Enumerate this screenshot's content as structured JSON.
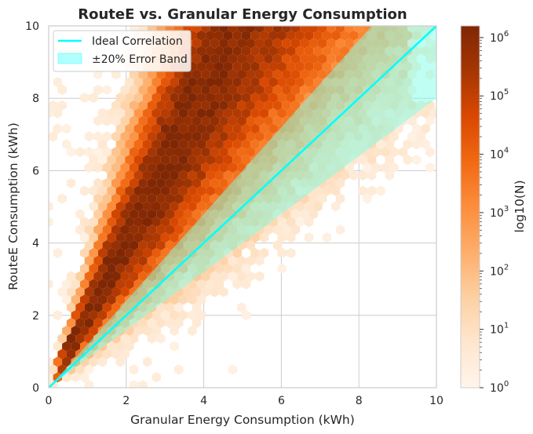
{
  "chart_data": {
    "type": "hexbin",
    "title": "RouteE vs. Granular Energy Consumption",
    "xlabel": "Granular Energy Consumption (kWh)",
    "ylabel": "RouteE Consumption (kWh)",
    "xlim": [
      0,
      10
    ],
    "ylim": [
      0,
      10
    ],
    "x_ticks": [
      "0",
      "2",
      "4",
      "6",
      "8",
      "10"
    ],
    "y_ticks": [
      "0",
      "2",
      "4",
      "6",
      "8",
      "10"
    ],
    "grid": true,
    "legend_position": "upper-left",
    "legend": [
      {
        "label": "Ideal Correlation",
        "kind": "line",
        "color": "#00ffff"
      },
      {
        "label": "±20% Error Band",
        "kind": "patch",
        "color": "#00ffff"
      }
    ],
    "ideal_line": {
      "x": [
        0,
        10
      ],
      "y": [
        0,
        10
      ]
    },
    "error_band": {
      "lower_factor": 0.8,
      "upper_factor": 1.2
    },
    "colorbar": {
      "label": "log10(N)",
      "scale": "log",
      "min_exponent": 0,
      "max_exponent": 6.2,
      "tick_base": "10",
      "tick_exponents": [
        "0",
        "1",
        "2",
        "3",
        "4",
        "5",
        "6"
      ],
      "colormap": "Oranges"
    },
    "density_model": {
      "description": "Density of points concentrated around RouteE ≈ 2.1 × Granular, spreading with magnitude",
      "ridge_slope": 2.1,
      "peak_log10_count": 6.2
    }
  },
  "colors": {
    "ideal_line": "#00ffff",
    "band_fill": "#7fffe8",
    "grid": "#cccccc",
    "axis_text": "#262626"
  }
}
